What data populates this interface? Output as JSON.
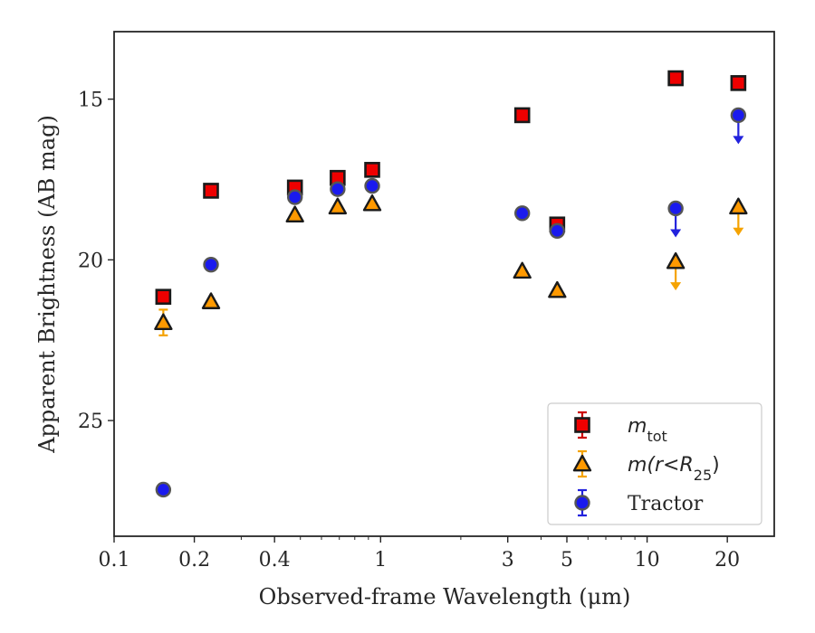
{
  "chart_data": {
    "type": "scatter",
    "xlabel": "Observed-frame Wavelength (μm)",
    "ylabel": "Apparent Brightness (AB mag)",
    "xscale": "log",
    "xlim": [
      0.1,
      30
    ],
    "ylim": [
      28.6,
      12.9
    ],
    "y_inverted": true,
    "grid": false,
    "legend_location": "lower right",
    "x_ticks": [
      0.1,
      0.2,
      0.4,
      1,
      3,
      5,
      10,
      20
    ],
    "x_tick_labels": [
      "0.1",
      "0.2",
      "0.4",
      "1",
      "3",
      "5",
      "10",
      "20"
    ],
    "y_ticks": [
      15,
      20,
      25
    ],
    "y_tick_labels": [
      "15",
      "20",
      "25"
    ],
    "series": [
      {
        "name": "m_tot",
        "legend_label": "m",
        "legend_subscript": "tot",
        "marker": "square",
        "color": "#ee0000",
        "edgecolor": "#1a1a1a",
        "errcolor": "#cc0000",
        "points": [
          {
            "x": 0.153,
            "y": 21.15,
            "upper_limit": false
          },
          {
            "x": 0.231,
            "y": 17.85,
            "upper_limit": false
          },
          {
            "x": 0.477,
            "y": 17.75,
            "upper_limit": false
          },
          {
            "x": 0.69,
            "y": 17.45,
            "upper_limit": false
          },
          {
            "x": 0.93,
            "y": 17.2,
            "upper_limit": false
          },
          {
            "x": 3.4,
            "y": 15.5,
            "upper_limit": false
          },
          {
            "x": 4.6,
            "y": 18.9,
            "upper_limit": false
          },
          {
            "x": 12.8,
            "y": 14.35,
            "upper_limit": false
          },
          {
            "x": 22.0,
            "y": 14.5,
            "upper_limit": false
          }
        ]
      },
      {
        "name": "m(r<R_25)",
        "legend_label": "m(r<R",
        "legend_subscript": "25",
        "legend_suffix": ")",
        "marker": "triangle",
        "color": "#ff9900",
        "edgecolor": "#1a1a1a",
        "errcolor": "#f5a300",
        "points": [
          {
            "x": 0.153,
            "y": 21.95,
            "upper_limit": false,
            "err": 0.4
          },
          {
            "x": 0.231,
            "y": 21.3,
            "upper_limit": false
          },
          {
            "x": 0.477,
            "y": 18.6,
            "upper_limit": false
          },
          {
            "x": 0.69,
            "y": 18.35,
            "upper_limit": false
          },
          {
            "x": 0.93,
            "y": 18.25,
            "upper_limit": false
          },
          {
            "x": 3.4,
            "y": 20.35,
            "upper_limit": false
          },
          {
            "x": 4.6,
            "y": 20.95,
            "upper_limit": false
          },
          {
            "x": 12.8,
            "y": 20.05,
            "upper_limit": true
          },
          {
            "x": 22.0,
            "y": 18.35,
            "upper_limit": true
          }
        ]
      },
      {
        "name": "Tractor",
        "legend_label": "Tractor",
        "marker": "circle",
        "color": "#1a1aee",
        "edgecolor": "#555555",
        "errcolor": "#2222dd",
        "points": [
          {
            "x": 0.153,
            "y": 27.15,
            "upper_limit": false
          },
          {
            "x": 0.231,
            "y": 20.15,
            "upper_limit": false
          },
          {
            "x": 0.477,
            "y": 18.05,
            "upper_limit": false
          },
          {
            "x": 0.69,
            "y": 17.8,
            "upper_limit": false
          },
          {
            "x": 0.93,
            "y": 17.7,
            "upper_limit": false
          },
          {
            "x": 3.4,
            "y": 18.55,
            "upper_limit": false
          },
          {
            "x": 4.6,
            "y": 19.1,
            "upper_limit": false
          },
          {
            "x": 12.8,
            "y": 18.4,
            "upper_limit": true
          },
          {
            "x": 22.0,
            "y": 15.5,
            "upper_limit": true
          }
        ]
      }
    ]
  }
}
